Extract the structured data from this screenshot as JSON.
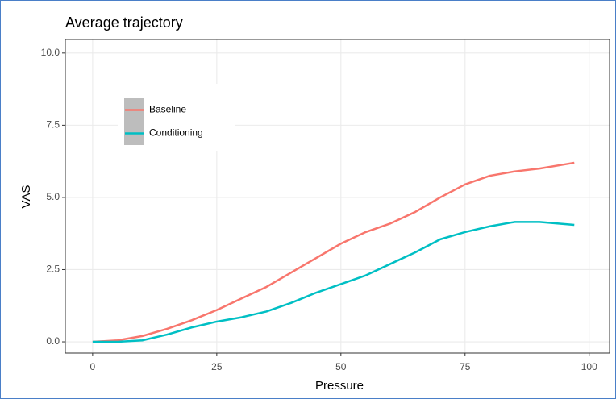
{
  "chart_data": {
    "type": "line",
    "title": "Average trajectory",
    "x_label": "Pressure",
    "y_label": "VAS",
    "x": [
      0,
      5,
      10,
      15,
      20,
      25,
      30,
      35,
      40,
      45,
      50,
      55,
      60,
      65,
      70,
      75,
      80,
      85,
      90,
      97
    ],
    "series": [
      {
        "name": "Baseline",
        "color": "#F8766D",
        "values": [
          0,
          0.05,
          0.2,
          0.45,
          0.75,
          1.1,
          1.5,
          1.9,
          2.4,
          2.9,
          3.4,
          3.8,
          4.1,
          4.5,
          5.0,
          5.45,
          5.75,
          5.9,
          6.0,
          6.2
        ]
      },
      {
        "name": "Conditioning",
        "color": "#00BFC4",
        "values": [
          0,
          0,
          0.05,
          0.25,
          0.5,
          0.7,
          0.85,
          1.05,
          1.35,
          1.7,
          2.0,
          2.3,
          2.7,
          3.1,
          3.55,
          3.8,
          4.0,
          4.15,
          4.15,
          4.05
        ]
      }
    ],
    "xlim": [
      -5.5,
      104.1
    ],
    "xticks": [
      0,
      25,
      50,
      75,
      100
    ],
    "ylim": [
      -0.39,
      10.47
    ],
    "yticks": [
      {
        "value": 0,
        "label": "0.0"
      },
      {
        "value": 2.5,
        "label": "2.5"
      },
      {
        "value": 5,
        "label": "5.0"
      },
      {
        "value": 7.5,
        "label": "7.5"
      },
      {
        "value": 10,
        "label": "10.0"
      }
    ],
    "grid": true,
    "legend_position": "top-left"
  }
}
